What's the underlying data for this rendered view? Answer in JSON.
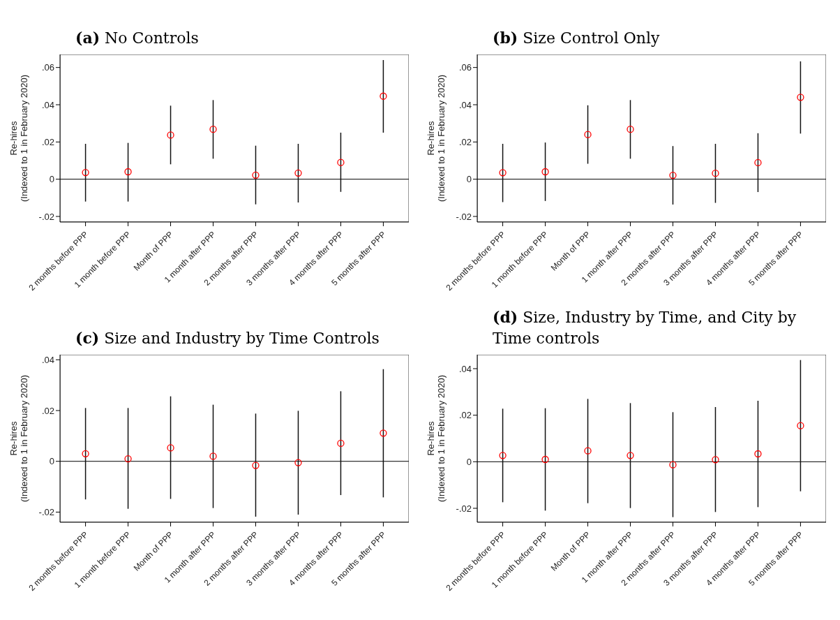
{
  "chart_data": [
    {
      "type": "scatter",
      "title": "(a) No Controls",
      "ylabel": "Re-hires\n(Indexed to 1 in February 2020)",
      "categories": [
        "2 months before PPP",
        "1 month before PPP",
        "Month of PPP",
        "1 month after PPP",
        "2 months after PPP",
        "3 months after PPP",
        "4 months after PPP",
        "5 months after PPP"
      ],
      "series": [
        {
          "color": "#ff0000",
          "values": [
            0.0036,
            0.004,
            0.0237,
            0.0268,
            0.0022,
            0.0033,
            0.009,
            0.0446
          ],
          "errors": [
            [
              -0.012,
              0.019
            ],
            [
              -0.012,
              0.0195
            ],
            [
              0.008,
              0.0395
            ],
            [
              0.011,
              0.0425
            ],
            [
              -0.0135,
              0.018
            ],
            [
              -0.0125,
              0.019
            ],
            [
              -0.0068,
              0.025
            ],
            [
              0.025,
              0.064
            ]
          ]
        }
      ],
      "ylim": [
        -0.023,
        0.067
      ],
      "yticks": [
        {
          "value": -0.02,
          "label": "-.02"
        },
        {
          "value": 0,
          "label": "0"
        },
        {
          "value": 0.02,
          "label": ".02"
        },
        {
          "value": 0.04,
          "label": ".04"
        },
        {
          "value": 0.06,
          "label": ".06"
        }
      ],
      "ref_lines": [
        {
          "axis": "y",
          "value": 0,
          "color": "#000000"
        }
      ],
      "grid": false,
      "legend": false,
      "marker": "circle"
    },
    {
      "type": "scatter",
      "title": "(b) Size Control Only",
      "ylabel": "Re-hires\n(Indexed to 1 in February 2020)",
      "categories": [
        "2 months before PPP",
        "1 month before PPP",
        "Month of PPP",
        "1 month after PPP",
        "2 months after PPP",
        "3 months after PPP",
        "4 months after PPP",
        "5 months after PPP"
      ],
      "series": [
        {
          "color": "#ff0000",
          "values": [
            0.0035,
            0.004,
            0.024,
            0.0268,
            0.0021,
            0.0032,
            0.0089,
            0.044
          ],
          "errors": [
            [
              -0.0123,
              0.019
            ],
            [
              -0.0117,
              0.0197
            ],
            [
              0.0083,
              0.0397
            ],
            [
              0.011,
              0.0425
            ],
            [
              -0.0136,
              0.0178
            ],
            [
              -0.0127,
              0.019
            ],
            [
              -0.0069,
              0.0247
            ],
            [
              0.0245,
              0.0633
            ]
          ]
        }
      ],
      "ylim": [
        -0.023,
        0.067
      ],
      "yticks": [
        {
          "value": -0.02,
          "label": "-.02"
        },
        {
          "value": 0,
          "label": "0"
        },
        {
          "value": 0.02,
          "label": ".02"
        },
        {
          "value": 0.04,
          "label": ".04"
        },
        {
          "value": 0.06,
          "label": ".06"
        }
      ],
      "ref_lines": [
        {
          "axis": "y",
          "value": 0,
          "color": "#000000"
        }
      ],
      "grid": false,
      "legend": false,
      "marker": "circle"
    },
    {
      "type": "scatter",
      "title": "(c) Size and Industry by Time Controls",
      "ylabel": "Re-hires\n(Indexed to 1 in February 2020)",
      "categories": [
        "2 months before PPP",
        "1 month before PPP",
        "Month of PPP",
        "1 month after PPP",
        "2 months after PPP",
        "3 months after PPP",
        "4 months after PPP",
        "5 months after PPP"
      ],
      "series": [
        {
          "color": "#ff0000",
          "values": [
            0.003,
            0.001,
            0.0053,
            0.002,
            -0.0016,
            -0.0005,
            0.0071,
            0.0111
          ],
          "errors": [
            [
              -0.015,
              0.021
            ],
            [
              -0.0187,
              0.021
            ],
            [
              -0.0148,
              0.0256
            ],
            [
              -0.0184,
              0.0223
            ],
            [
              -0.0218,
              0.0188
            ],
            [
              -0.021,
              0.0199
            ],
            [
              -0.0133,
              0.0276
            ],
            [
              -0.0142,
              0.0363
            ]
          ]
        }
      ],
      "ylim": [
        -0.024,
        0.042
      ],
      "yticks": [
        {
          "value": -0.02,
          "label": "-.02"
        },
        {
          "value": 0,
          "label": "0"
        },
        {
          "value": 0.02,
          "label": ".02"
        },
        {
          "value": 0.04,
          "label": ".04"
        }
      ],
      "ref_lines": [
        {
          "axis": "y",
          "value": 0,
          "color": "#000000"
        }
      ],
      "grid": false,
      "legend": false,
      "marker": "circle"
    },
    {
      "type": "scatter",
      "title": "(d) Size, Industry by Time, and City by Time controls",
      "ylabel": "Re-hires\n(Indexed to 1 in February 2020)",
      "categories": [
        "2 months before PPP",
        "1 month before PPP",
        "Month of PPP",
        "1 month after PPP",
        "2 months after PPP",
        "3 months after PPP",
        "4 months after PPP",
        "5 months after PPP"
      ],
      "series": [
        {
          "color": "#ff0000",
          "values": [
            0.0027,
            0.001,
            0.0047,
            0.0027,
            -0.0013,
            0.0009,
            0.0034,
            0.0155
          ],
          "errors": [
            [
              -0.0174,
              0.0228
            ],
            [
              -0.021,
              0.023
            ],
            [
              -0.0178,
              0.027
            ],
            [
              -0.0199,
              0.0252
            ],
            [
              -0.0238,
              0.0213
            ],
            [
              -0.0216,
              0.0235
            ],
            [
              -0.0195,
              0.0262
            ],
            [
              -0.0127,
              0.0437
            ]
          ]
        }
      ],
      "ylim": [
        -0.026,
        0.046
      ],
      "yticks": [
        {
          "value": -0.02,
          "label": "-.02"
        },
        {
          "value": 0,
          "label": "0"
        },
        {
          "value": 0.02,
          "label": ".02"
        },
        {
          "value": 0.04,
          "label": ".04"
        }
      ],
      "ref_lines": [
        {
          "axis": "y",
          "value": 0,
          "color": "#000000"
        }
      ],
      "grid": false,
      "legend": false,
      "marker": "circle"
    }
  ]
}
